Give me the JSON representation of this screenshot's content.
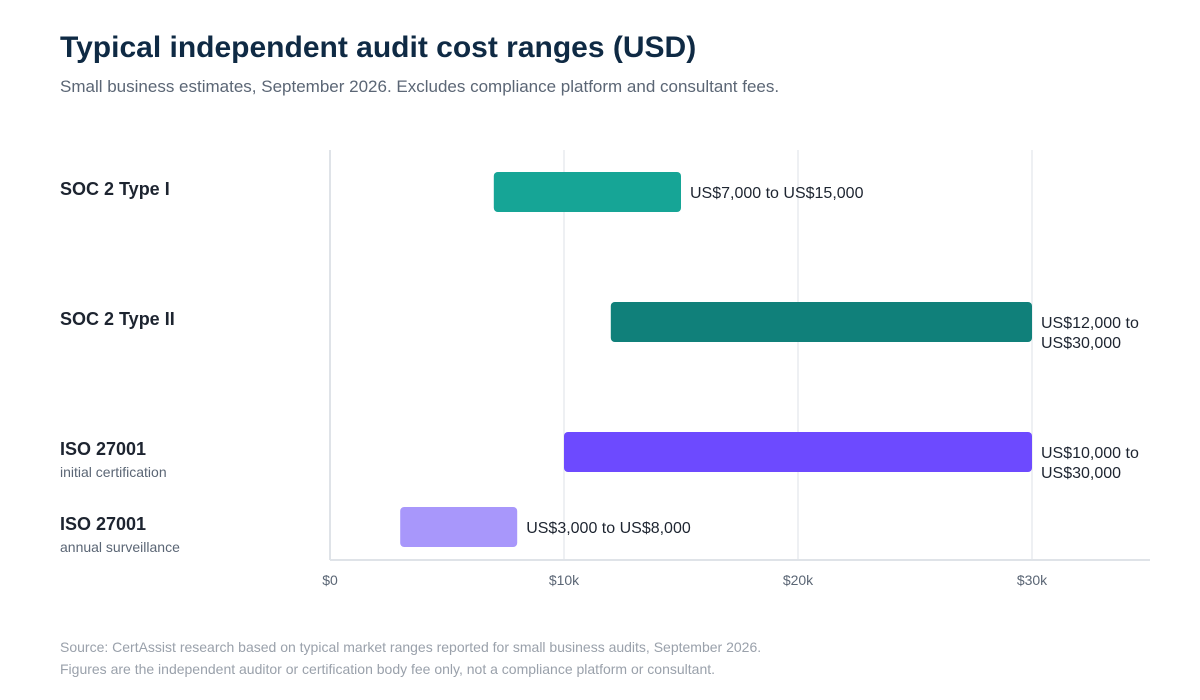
{
  "title": "Typical independent audit cost ranges (USD)",
  "subtitle": "Small business estimates, September 2026. Excludes compliance platform and consultant fees.",
  "footer": {
    "line1": "Source: CertAssist research based on typical market ranges reported for small business audits, September 2026.",
    "line2": "Figures are the independent auditor or certification body fee only, not a compliance platform or consultant."
  },
  "chart_data": {
    "type": "bar",
    "orientation": "horizontal-range",
    "xlim": [
      0,
      35000
    ],
    "ticks": [
      {
        "value": 0,
        "label": "$0"
      },
      {
        "value": 10000,
        "label": "$10k"
      },
      {
        "value": 20000,
        "label": "$20k"
      },
      {
        "value": 30000,
        "label": "$30k"
      }
    ],
    "grid": true,
    "items": [
      {
        "label": "SOC 2 Type I",
        "sublabel": "",
        "low": 7000,
        "high": 15000,
        "color": "#16a596",
        "value_label": [
          "US$7,000 to US$15,000"
        ]
      },
      {
        "label": "SOC 2 Type II",
        "sublabel": "",
        "low": 12000,
        "high": 30000,
        "color": "#10807a",
        "value_label": [
          "US$12,000 to",
          "US$30,000"
        ]
      },
      {
        "label": "ISO 27001",
        "sublabel": "initial certification",
        "low": 10000,
        "high": 30000,
        "color": "#6d4aff",
        "value_label": [
          "US$10,000 to",
          "US$30,000"
        ]
      },
      {
        "label": "ISO 27001",
        "sublabel": "annual surveillance",
        "low": 3000,
        "high": 8000,
        "color": "#a897fb",
        "value_label": [
          "US$3,000 to US$8,000"
        ]
      }
    ]
  }
}
